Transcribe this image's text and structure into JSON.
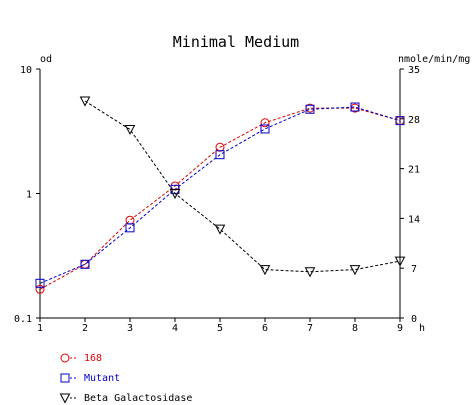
{
  "chart_data": {
    "type": "line",
    "title": "Minimal Medium",
    "xlabel": "h",
    "ylabel_left": "od",
    "ylabel_right": "nmole/min/mg",
    "x": [
      1,
      2,
      3,
      4,
      5,
      6,
      7,
      8,
      9
    ],
    "xlim": [
      1,
      9
    ],
    "y_left_scale": "log",
    "y_left_lim": [
      0.1,
      10
    ],
    "y_left_ticks": [
      0.1,
      1,
      10
    ],
    "y_left_tick_labels": [
      "0.1",
      "1",
      "10"
    ],
    "y_right_lim": [
      0,
      35
    ],
    "y_right_ticks": [
      0,
      7,
      14,
      21,
      28,
      35
    ],
    "y_right_tick_labels": [
      "0",
      "7",
      "14",
      "21",
      "28",
      "35"
    ],
    "x_tick_labels": [
      "1",
      "2",
      "3",
      "4",
      "5",
      "6",
      "7",
      "8",
      "9"
    ],
    "series": [
      {
        "name": "168",
        "axis": "left",
        "color": "#e00000",
        "marker": "circle",
        "x": [
          1,
          2,
          3,
          4,
          5,
          6,
          7,
          8,
          9
        ],
        "values": [
          0.17,
          0.27,
          0.61,
          1.15,
          2.35,
          3.7,
          4.85,
          4.85,
          3.85
        ]
      },
      {
        "name": "Mutant",
        "axis": "left",
        "color": "#0000cc",
        "marker": "square",
        "x": [
          1,
          2,
          3,
          4,
          5,
          6,
          7,
          8,
          9
        ],
        "values": [
          0.19,
          0.27,
          0.53,
          1.08,
          2.05,
          3.3,
          4.75,
          4.95,
          3.85
        ]
      },
      {
        "name": "Beta Galactosidase",
        "axis": "right",
        "color": "#000000",
        "marker": "triangle-down",
        "x": [
          2,
          3,
          4,
          5,
          6,
          7,
          8,
          9
        ],
        "values": [
          30.5,
          26.5,
          17.5,
          12.5,
          6.8,
          6.5,
          6.8,
          8.0
        ]
      }
    ],
    "grid": false,
    "legend_position": "bottom-left"
  }
}
